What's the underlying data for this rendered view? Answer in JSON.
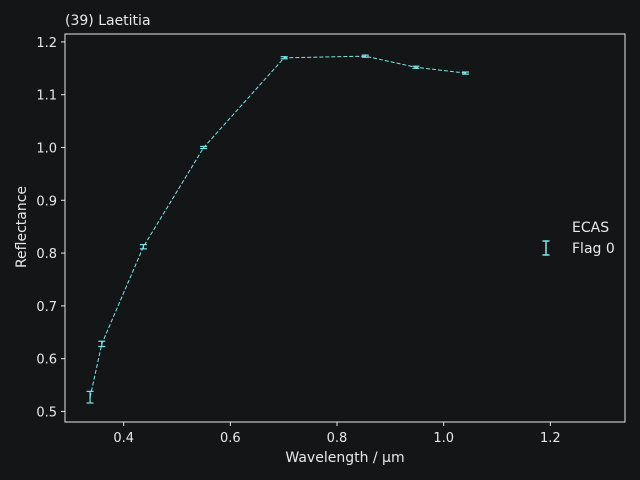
{
  "chart_data": {
    "type": "line",
    "title": "(39) Laetitia",
    "xlabel": "Wavelength / µm",
    "ylabel": "Reflectance",
    "xlim": [
      0.29,
      1.34
    ],
    "ylim": [
      0.48,
      1.215
    ],
    "xticks": [
      0.4,
      0.6,
      0.8,
      1.0,
      1.2
    ],
    "xtick_labels": [
      "0.4",
      "0.6",
      "0.8",
      "1.0",
      "1.2"
    ],
    "yticks": [
      0.5,
      0.6,
      0.7,
      0.8,
      0.9,
      1.0,
      1.1,
      1.2
    ],
    "ytick_labels": [
      "0.5",
      "0.6",
      "0.7",
      "0.8",
      "0.9",
      "1.0",
      "1.1",
      "1.2"
    ],
    "grid": false,
    "legend_position": "right",
    "series": [
      {
        "name": "ECAS",
        "flag_label": "Flag 0",
        "color": "#7ee8e8",
        "line_style": "dashed",
        "x": [
          0.337,
          0.359,
          0.437,
          0.55,
          0.701,
          0.853,
          0.948,
          1.041
        ],
        "y": [
          0.527,
          0.628,
          0.812,
          1.0,
          1.17,
          1.173,
          1.152,
          1.141
        ],
        "yerr": [
          0.011,
          0.005,
          0.004,
          0.002,
          0.002,
          0.002,
          0.002,
          0.002
        ]
      }
    ]
  }
}
